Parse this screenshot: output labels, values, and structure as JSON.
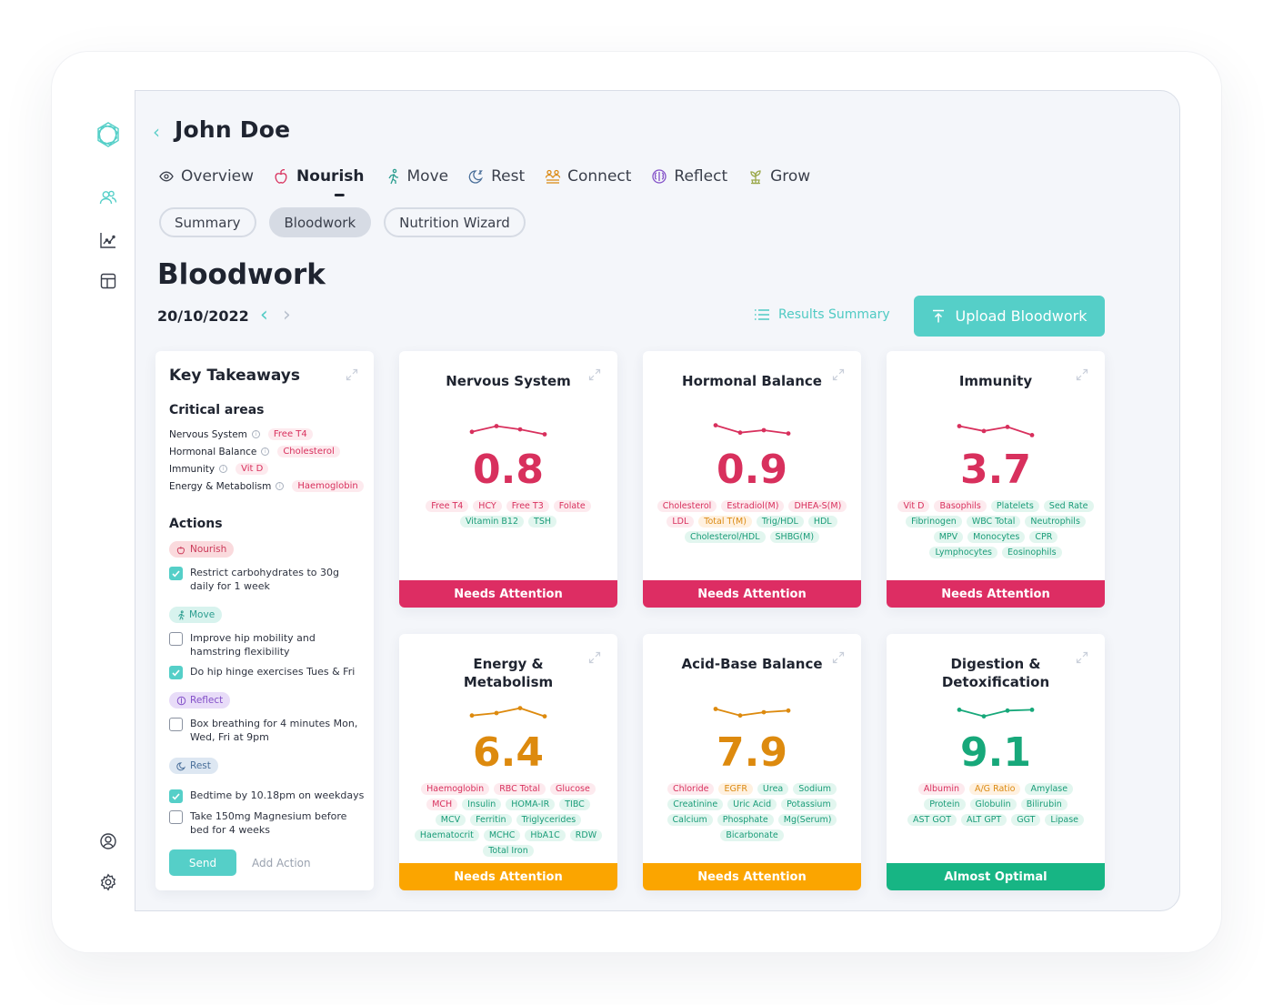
{
  "colors": {
    "accent": "#55cfc8",
    "needs_attention_red": "#dd2d63",
    "needs_attention_orange": "#fba500",
    "almost_optimal_green": "#17b584",
    "score_red": "#d8305d",
    "score_orange": "#dd8a0e",
    "score_green": "#17a87a"
  },
  "sidebar": {
    "icons": [
      "logo-icon",
      "users-icon",
      "chart-icon",
      "layout-icon",
      "account-icon",
      "settings-icon"
    ]
  },
  "header": {
    "patient_name": "John Doe"
  },
  "tabs": [
    {
      "label": "Overview",
      "icon": "eye-icon",
      "active": false
    },
    {
      "label": "Nourish",
      "icon": "apple-icon",
      "active": true
    },
    {
      "label": "Move",
      "icon": "running-icon",
      "active": false
    },
    {
      "label": "Rest",
      "icon": "moon-icon",
      "active": false
    },
    {
      "label": "Connect",
      "icon": "people-icon",
      "active": false
    },
    {
      "label": "Reflect",
      "icon": "brain-icon",
      "active": false
    },
    {
      "label": "Grow",
      "icon": "plant-icon",
      "active": false
    }
  ],
  "subtabs": [
    {
      "label": "Summary",
      "active": false
    },
    {
      "label": "Bloodwork",
      "active": true
    },
    {
      "label": "Nutrition Wizard",
      "active": false
    }
  ],
  "page": {
    "title": "Bloodwork",
    "date": "20/10/2022",
    "results_summary": "Results Summary",
    "upload_label": "Upload Bloodwork"
  },
  "key_takeaways": {
    "title": "Key Takeaways",
    "critical_title": "Critical areas",
    "critical": [
      {
        "area": "Nervous System",
        "marker": "Free T4"
      },
      {
        "area": "Hormonal Balance",
        "marker": "Cholesterol"
      },
      {
        "area": "Immunity",
        "marker": "Vit D"
      },
      {
        "area": "Energy & Metabolism",
        "marker": "Haemoglobin"
      }
    ],
    "actions_title": "Actions",
    "categories": {
      "nourish": "Nourish",
      "move": "Move",
      "reflect": "Reflect",
      "rest": "Rest"
    },
    "actions": [
      {
        "text": "Restrict carbohydrates to 30g daily for 1 week",
        "checked": true
      },
      {
        "text": "Improve hip mobility and hamstring flexibility",
        "checked": false
      },
      {
        "text": "Do hip hinge exercises Tues & Fri",
        "checked": true
      },
      {
        "text": "Box breathing for 4 minutes Mon, Wed, Fri at 9pm",
        "checked": false
      },
      {
        "text": "Bedtime by 10.18pm on weekdays",
        "checked": true
      },
      {
        "text": "Take 150mg Magnesium before bed for 4 weeks",
        "checked": false
      }
    ],
    "send_label": "Send",
    "add_action_label": "Add Action"
  },
  "cards": [
    {
      "title": "Nervous System",
      "score": "0.8",
      "status": "Needs Attention",
      "tone": "red",
      "spark": [
        0.4,
        0.75,
        0.55,
        0.25
      ],
      "tags": [
        {
          "t": "Free T4",
          "c": "red"
        },
        {
          "t": "HCY",
          "c": "red"
        },
        {
          "t": "Free T3",
          "c": "red"
        },
        {
          "t": "Folate",
          "c": "red"
        },
        {
          "t": "Vitamin B12",
          "c": "green"
        },
        {
          "t": "TSH",
          "c": "green"
        }
      ]
    },
    {
      "title": "Hormonal Balance",
      "score": "0.9",
      "status": "Needs Attention",
      "tone": "red",
      "spark": [
        0.8,
        0.35,
        0.5,
        0.3
      ],
      "tags": [
        {
          "t": "Cholesterol",
          "c": "red"
        },
        {
          "t": "Estradiol(M)",
          "c": "red"
        },
        {
          "t": "DHEA-S(M)",
          "c": "red"
        },
        {
          "t": "LDL",
          "c": "red"
        },
        {
          "t": "Total T(M)",
          "c": "orange"
        },
        {
          "t": "Trig/HDL",
          "c": "green"
        },
        {
          "t": "HDL",
          "c": "green"
        },
        {
          "t": "Cholesterol/HDL",
          "c": "green"
        },
        {
          "t": "SHBG(M)",
          "c": "green"
        }
      ]
    },
    {
      "title": "Immunity",
      "score": "3.7",
      "status": "Needs Attention",
      "tone": "red",
      "spark": [
        0.75,
        0.45,
        0.7,
        0.2
      ],
      "tags": [
        {
          "t": "Vit D",
          "c": "red"
        },
        {
          "t": "Basophils",
          "c": "red"
        },
        {
          "t": "Platelets",
          "c": "green"
        },
        {
          "t": "Sed Rate",
          "c": "green"
        },
        {
          "t": "Fibrinogen",
          "c": "green"
        },
        {
          "t": "WBC Total",
          "c": "green"
        },
        {
          "t": "Neutrophils",
          "c": "green"
        },
        {
          "t": "MPV",
          "c": "green"
        },
        {
          "t": "Monocytes",
          "c": "green"
        },
        {
          "t": "CPR",
          "c": "green"
        },
        {
          "t": "Lymphocytes",
          "c": "green"
        },
        {
          "t": "Eosinophils",
          "c": "green"
        }
      ]
    },
    {
      "title": "Energy & Metabolism",
      "score": "6.4",
      "status": "Needs Attention",
      "tone": "orange",
      "spark": [
        0.35,
        0.5,
        0.8,
        0.3
      ],
      "tags": [
        {
          "t": "Haemoglobin",
          "c": "red"
        },
        {
          "t": "RBC Total",
          "c": "red"
        },
        {
          "t": "Glucose",
          "c": "red"
        },
        {
          "t": "MCH",
          "c": "red"
        },
        {
          "t": "Insulin",
          "c": "green"
        },
        {
          "t": "HOMA-IR",
          "c": "green"
        },
        {
          "t": "TIBC",
          "c": "green"
        },
        {
          "t": "MCV",
          "c": "green"
        },
        {
          "t": "Ferritin",
          "c": "green"
        },
        {
          "t": "Triglycerides",
          "c": "green"
        },
        {
          "t": "Haematocrit",
          "c": "green"
        },
        {
          "t": "MCHC",
          "c": "green"
        },
        {
          "t": "HbA1C",
          "c": "green"
        },
        {
          "t": "RDW",
          "c": "green"
        },
        {
          "t": "Total Iron",
          "c": "green"
        }
      ]
    },
    {
      "title": "Acid-Base Balance",
      "score": "7.9",
      "status": "Needs Attention",
      "tone": "orange",
      "spark": [
        0.75,
        0.35,
        0.55,
        0.65
      ],
      "tags": [
        {
          "t": "Chloride",
          "c": "red"
        },
        {
          "t": "EGFR",
          "c": "orange"
        },
        {
          "t": "Urea",
          "c": "green"
        },
        {
          "t": "Sodium",
          "c": "green"
        },
        {
          "t": "Creatinine",
          "c": "green"
        },
        {
          "t": "Uric Acid",
          "c": "green"
        },
        {
          "t": "Potassium",
          "c": "green"
        },
        {
          "t": "Calcium",
          "c": "green"
        },
        {
          "t": "Phosphate",
          "c": "green"
        },
        {
          "t": "Mg(Serum)",
          "c": "green"
        },
        {
          "t": "Bicarbonate",
          "c": "green"
        }
      ]
    },
    {
      "title": "Digestion & Detoxification",
      "score": "9.1",
      "status": "Almost Optimal",
      "tone": "green",
      "spark": [
        0.7,
        0.3,
        0.65,
        0.7
      ],
      "tags": [
        {
          "t": "Albumin",
          "c": "red"
        },
        {
          "t": "A/G Ratio",
          "c": "orange"
        },
        {
          "t": "Amylase",
          "c": "green"
        },
        {
          "t": "Protein",
          "c": "green"
        },
        {
          "t": "Globulin",
          "c": "green"
        },
        {
          "t": "Bilirubin",
          "c": "green"
        },
        {
          "t": "AST GOT",
          "c": "green"
        },
        {
          "t": "ALT GPT",
          "c": "green"
        },
        {
          "t": "GGT",
          "c": "green"
        },
        {
          "t": "Lipase",
          "c": "green"
        }
      ]
    }
  ]
}
